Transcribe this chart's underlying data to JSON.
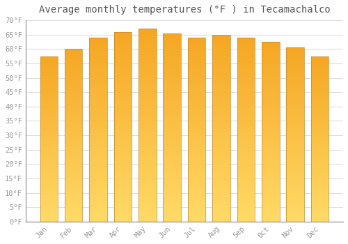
{
  "title": "Average monthly temperatures (°F ) in Tecamachalco",
  "months": [
    "Jan",
    "Feb",
    "Mar",
    "Apr",
    "May",
    "Jun",
    "Jul",
    "Aug",
    "Sep",
    "Oct",
    "Nov",
    "Dec"
  ],
  "values": [
    57.5,
    60.0,
    64.0,
    66.0,
    67.0,
    65.5,
    64.0,
    65.0,
    64.0,
    62.5,
    60.5,
    57.5
  ],
  "bar_color": "#F5A623",
  "bar_color_light": "#FFD966",
  "bar_edge_color": "#C8882A",
  "background_color": "#FFFFFF",
  "grid_color": "#DDDDDD",
  "title_color": "#555555",
  "tick_label_color": "#999999",
  "ylim": [
    0,
    70
  ],
  "ytick_step": 5,
  "title_fontsize": 10,
  "tick_fontsize": 7.5
}
